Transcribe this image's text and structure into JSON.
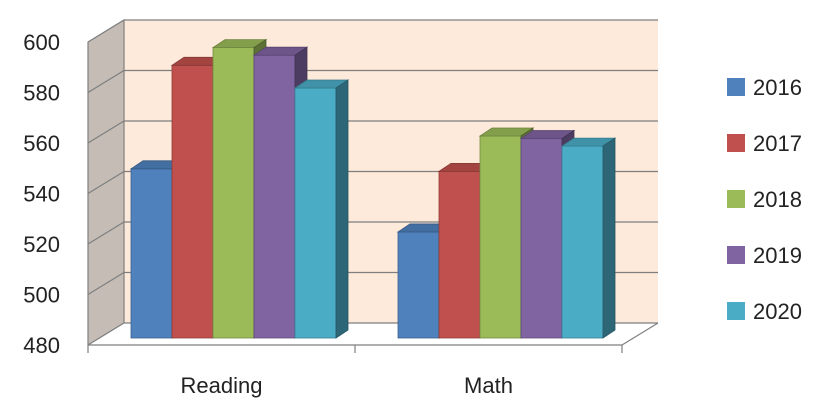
{
  "chart_data": {
    "type": "bar",
    "title": "",
    "xlabel": "",
    "ylabel": "",
    "categories": [
      "Reading",
      "Math"
    ],
    "ylim": [
      480,
      600
    ],
    "yticks": [
      480,
      500,
      520,
      540,
      560,
      580,
      600
    ],
    "series": [
      {
        "name": "2016",
        "color": "#4F81BD",
        "values": [
          547,
          522
        ]
      },
      {
        "name": "2017",
        "color": "#C0504D",
        "values": [
          588,
          546
        ]
      },
      {
        "name": "2018",
        "color": "#9BBB59",
        "values": [
          595,
          560
        ]
      },
      {
        "name": "2019",
        "color": "#8064A2",
        "values": [
          592,
          559
        ]
      },
      {
        "name": "2020",
        "color": "#4BACC6",
        "values": [
          579,
          556
        ]
      }
    ],
    "legend_position": "right",
    "grid": true,
    "style": "3d-clustered-column"
  }
}
